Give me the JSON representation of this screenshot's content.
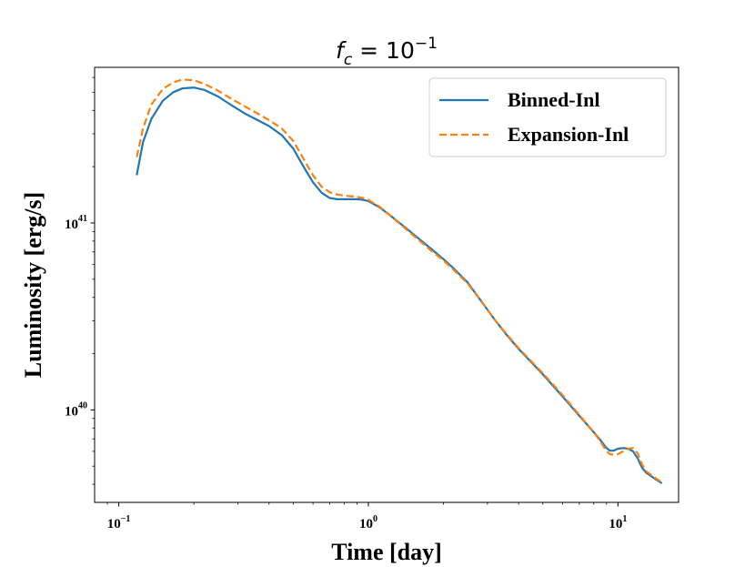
{
  "chart_data": {
    "type": "line",
    "title": {
      "base": "f",
      "sub": "c",
      "eq": " = 10",
      "sup": "−1"
    },
    "xlabel": "Time [day]",
    "ylabel": "Luminosity [erg/s]",
    "xscale": "log",
    "yscale": "log",
    "xlim": [
      0.08,
      17.5
    ],
    "ylim": [
      3.2e+39,
      6.8e+41
    ],
    "x_ticks": [
      {
        "value": 0.1,
        "base": "10",
        "exp": "−1"
      },
      {
        "value": 1,
        "base": "10",
        "exp": "0"
      },
      {
        "value": 10,
        "base": "10",
        "exp": "1"
      }
    ],
    "y_ticks": [
      {
        "value": 1e+40,
        "base": "10",
        "exp": "40"
      },
      {
        "value": 1e+41,
        "base": "10",
        "exp": "41"
      }
    ],
    "legend_position": "top-right",
    "series": [
      {
        "name": "Binned-Inl",
        "color": "#1f77b4",
        "style": "solid",
        "x": [
          0.118,
          0.125,
          0.135,
          0.15,
          0.165,
          0.18,
          0.2,
          0.22,
          0.25,
          0.28,
          0.32,
          0.36,
          0.4,
          0.45,
          0.5,
          0.55,
          0.6,
          0.65,
          0.7,
          0.75,
          0.8,
          0.85,
          0.9,
          0.95,
          1.0,
          1.1,
          1.2,
          1.4,
          1.6,
          1.8,
          2.0,
          2.2,
          2.5,
          2.8,
          3.2,
          3.6,
          4.0,
          5.0,
          6.0,
          7.0,
          8.0,
          8.5,
          9.0,
          9.3,
          9.6,
          10.0,
          10.5,
          11.0,
          11.5,
          12.0,
          12.5,
          13.0,
          14.0,
          15.0
        ],
        "y": [
          1.8e+41,
          2.7e+41,
          3.6e+41,
          4.5e+41,
          5e+41,
          5.25e+41,
          5.3e+41,
          5.15e+41,
          4.75e+41,
          4.3e+41,
          3.85e+41,
          3.55e+41,
          3.3e+41,
          2.95e+41,
          2.5e+41,
          2e+41,
          1.65e+41,
          1.45e+41,
          1.36e+41,
          1.34e+41,
          1.34e+41,
          1.34e+41,
          1.34e+41,
          1.33e+41,
          1.31e+41,
          1.22e+41,
          1.12e+41,
          9.5e+40,
          8.2e+40,
          7.2e+40,
          6.4e+40,
          5.7e+40,
          4.8e+40,
          3.9e+40,
          3.05e+40,
          2.5e+40,
          2.12e+40,
          1.55e+40,
          1.18e+40,
          9.3e+39,
          7.6e+39,
          6.9e+39,
          6.25e+39,
          6.05e+39,
          6.05e+39,
          6.2e+39,
          6.25e+39,
          6.2e+39,
          6e+39,
          5.5e+39,
          4.9e+39,
          4.6e+39,
          4.3e+39,
          4.05e+39
        ]
      },
      {
        "name": "Expansion-Inl",
        "color": "#ff7f0e",
        "style": "dashed",
        "x": [
          0.118,
          0.125,
          0.135,
          0.15,
          0.165,
          0.18,
          0.2,
          0.22,
          0.25,
          0.28,
          0.32,
          0.36,
          0.4,
          0.45,
          0.5,
          0.55,
          0.6,
          0.65,
          0.7,
          0.75,
          0.8,
          0.85,
          0.9,
          0.95,
          1.0,
          1.1,
          1.2,
          1.4,
          1.6,
          1.8,
          2.0,
          2.2,
          2.5,
          2.8,
          3.2,
          3.6,
          4.0,
          5.0,
          6.0,
          7.0,
          8.0,
          8.5,
          9.0,
          9.3,
          9.6,
          10.0,
          10.5,
          11.0,
          11.5,
          12.0,
          12.5,
          13.0,
          14.0,
          15.0
        ],
        "y": [
          2.25e+41,
          3.2e+41,
          4.3e+41,
          5.2e+41,
          5.65e+41,
          5.85e+41,
          5.8e+41,
          5.55e+41,
          5.1e+41,
          4.65e+41,
          4.2e+41,
          3.85e+41,
          3.55e+41,
          3.2e+41,
          2.75e+41,
          2.2e+41,
          1.8e+41,
          1.56e+41,
          1.46e+41,
          1.42e+41,
          1.4e+41,
          1.39e+41,
          1.38e+41,
          1.36e+41,
          1.33e+41,
          1.23e+41,
          1.12e+41,
          9.4e+40,
          8.05e+40,
          7.05e+40,
          6.3e+40,
          5.6e+40,
          4.75e+40,
          3.9e+40,
          3.05e+40,
          2.52e+40,
          2.14e+40,
          1.57e+40,
          1.2e+40,
          9.4e+39,
          7.6e+39,
          6.8e+39,
          6e+39,
          5.8e+39,
          5.75e+39,
          5.8e+39,
          6e+39,
          6.2e+39,
          6.25e+39,
          5.85e+39,
          5.1e+39,
          4.7e+39,
          4.35e+39,
          4.1e+39
        ]
      }
    ]
  }
}
